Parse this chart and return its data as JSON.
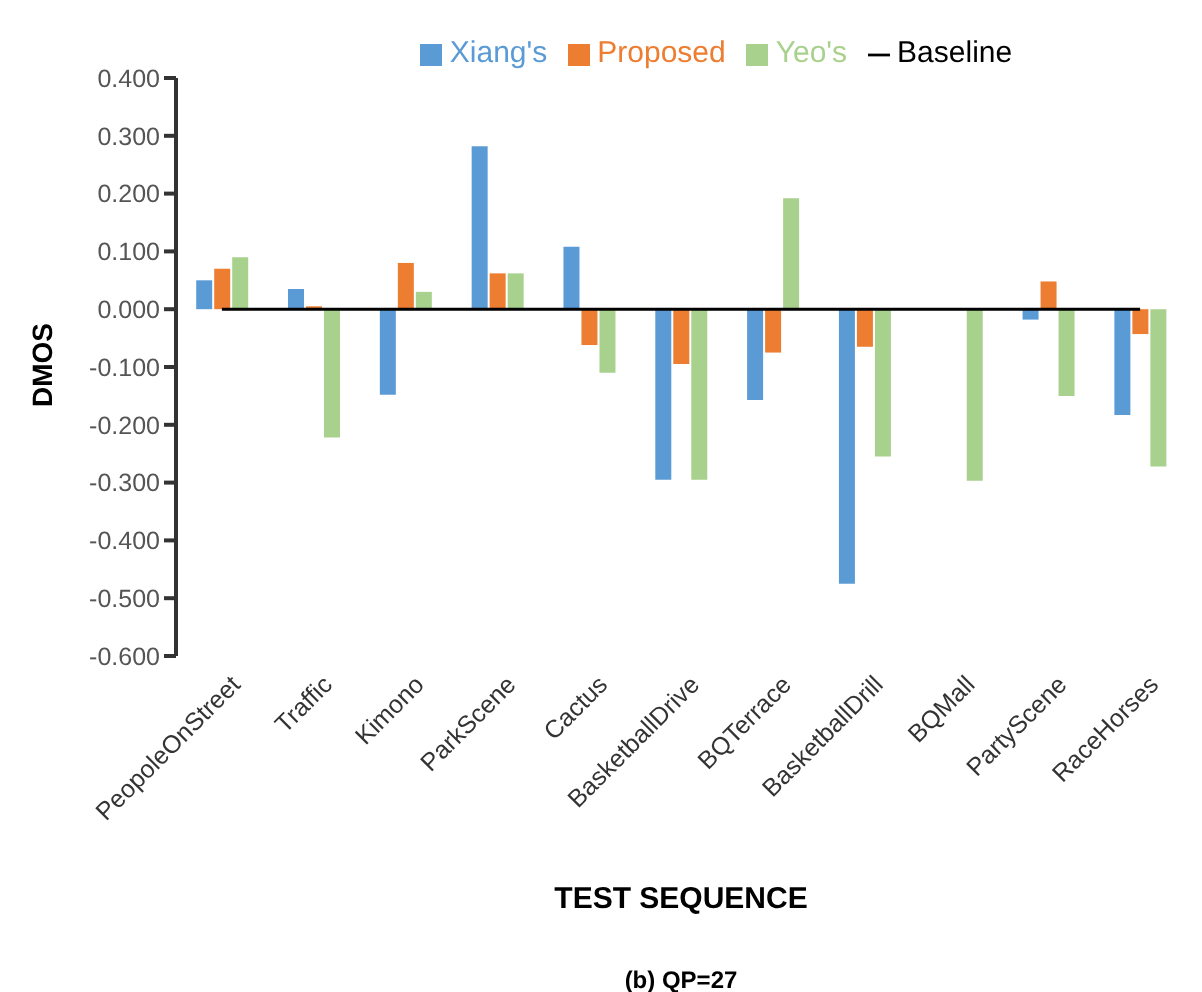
{
  "chart_data": {
    "type": "bar",
    "title": "(b) QP=27",
    "xlabel": "TEST SEQUENCE",
    "ylabel": "DMOS",
    "categories": [
      "PeopoleOnStreet",
      "Traffic",
      "Kimono",
      "ParkScene",
      "Cactus",
      "BasketballDrive",
      "BQTerrace",
      "BasketballDrill",
      "BQMall",
      "PartyScene",
      "RaceHorses"
    ],
    "series": [
      {
        "name": "Xiang's",
        "color": "#5b9bd5",
        "values": [
          0.05,
          0.035,
          -0.148,
          0.282,
          0.108,
          -0.295,
          -0.157,
          -0.475,
          null,
          -0.018,
          -0.183
        ]
      },
      {
        "name": "Proposed",
        "color": "#ed7d31",
        "values": [
          0.07,
          0.005,
          0.08,
          0.062,
          -0.062,
          -0.095,
          -0.075,
          -0.065,
          null,
          0.048,
          -0.043
        ]
      },
      {
        "name": "Yeo's",
        "color": "#a9d18e",
        "values": [
          0.09,
          -0.222,
          0.03,
          0.062,
          -0.11,
          -0.295,
          0.192,
          -0.255,
          -0.297,
          -0.15,
          -0.272
        ]
      },
      {
        "name": "Baseline",
        "type": "line",
        "color": "#000000",
        "values": [
          0,
          0,
          0,
          0,
          0,
          0,
          0,
          0,
          0,
          0,
          0
        ]
      }
    ],
    "ylim": [
      -0.6,
      0.4
    ],
    "yticks": [
      {
        "value": -0.6,
        "label": "-0.600"
      },
      {
        "value": -0.5,
        "label": "-0.500"
      },
      {
        "value": -0.4,
        "label": "-0.400"
      },
      {
        "value": -0.3,
        "label": "-0.300"
      },
      {
        "value": -0.2,
        "label": "-0.200"
      },
      {
        "value": -0.1,
        "label": "-0.100"
      },
      {
        "value": 0,
        "label": "0.000"
      },
      {
        "value": 0.1,
        "label": "0.100"
      },
      {
        "value": 0.2,
        "label": "0.200"
      },
      {
        "value": 0.3,
        "label": "0.300"
      },
      {
        "value": 0.4,
        "label": "0.400"
      }
    ],
    "legend": "top",
    "marker": "none",
    "grid": false
  }
}
